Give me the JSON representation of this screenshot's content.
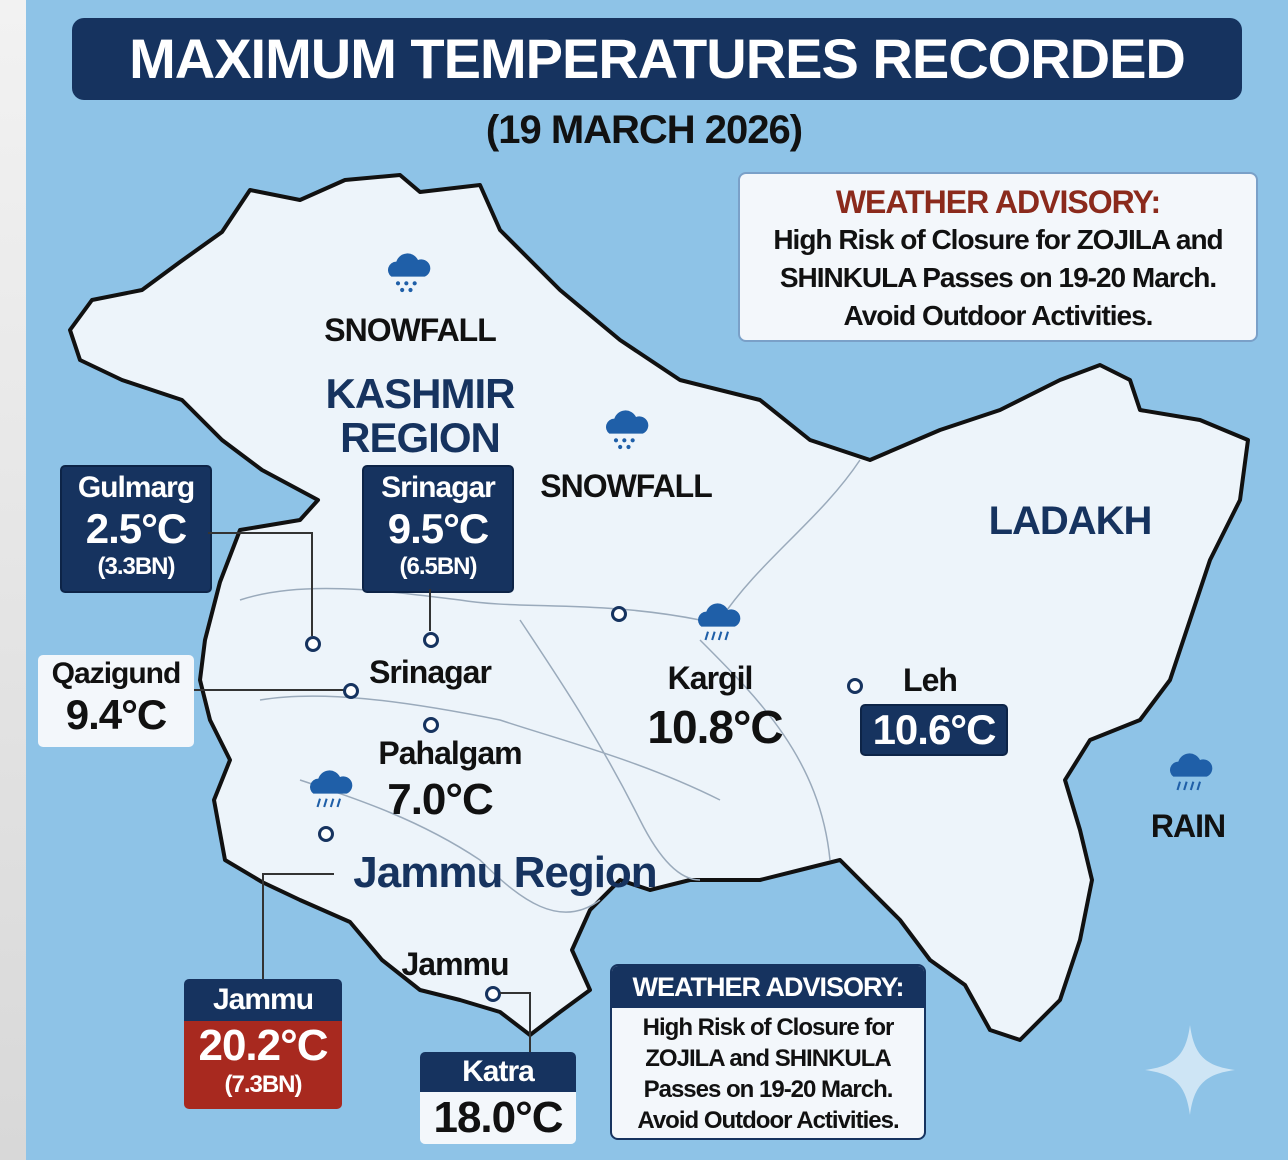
{
  "title": "MAXIMUM TEMPERATURES RECORDED",
  "subtitle": "(19 MARCH 2026)",
  "colors": {
    "background": "#8ec3e7",
    "navy": "#16335f",
    "hot": "#a8291f",
    "land": "#edf4fa",
    "advisory_heading": "#8b2a1c"
  },
  "regions": {
    "kashmir": "KASHMIR\nREGION",
    "jammu": "Jammu Region",
    "ladakh": "LADAKH"
  },
  "weather_labels": {
    "snow1": "SNOWFALL",
    "snow2": "SNOWFALL",
    "rain": "RAIN"
  },
  "stations": {
    "gulmarg": {
      "name": "Gulmarg",
      "temp": "2.5°C",
      "dep": "(3.3BN)"
    },
    "srinagar": {
      "name": "Srinagar",
      "temp": "9.5°C",
      "dep": "(6.5BN)",
      "map_label": "Srinagar"
    },
    "qazigund": {
      "name": "Qazigund",
      "temp": "9.4°C"
    },
    "pahalgam": {
      "name": "Pahalgam",
      "temp": "7.0°C"
    },
    "kargil": {
      "name": "Kargil",
      "temp": "10.8°C"
    },
    "leh": {
      "name": "Leh",
      "temp": "10.6°C"
    },
    "jammu": {
      "name": "Jammu",
      "temp": "20.2°C",
      "dep": "(7.3BN)",
      "map_label": "Jammu"
    },
    "katra": {
      "name": "Katra",
      "temp": "18.0°C"
    }
  },
  "advisory_top": {
    "heading": "WEATHER ADVISORY:",
    "body": "High Risk of Closure for ZOJILA and SHINKULA Passes on 19-20 March. Avoid Outdoor Activities."
  },
  "advisory_bottom": {
    "heading": "WEATHER ADVISORY:",
    "body": "High Risk of Closure for ZOJILA and SHINKULA Passes on 19-20 March. Avoid Outdoor Activities."
  },
  "icons": [
    "snow-cloud-icon",
    "rain-cloud-icon",
    "sparkle-icon"
  ]
}
